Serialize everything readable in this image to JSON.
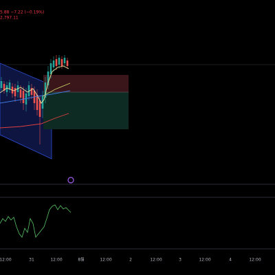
{
  "legend": {
    "price_change": "5.88  −7.22 (−0.19%)",
    "second_line": "2,797.11"
  },
  "time_axis": {
    "labels": [
      "12:00",
      "31",
      "12:00",
      "8월",
      "12:00",
      "2",
      "12:00",
      "3",
      "12:00",
      "4",
      "12:00"
    ]
  }
}
